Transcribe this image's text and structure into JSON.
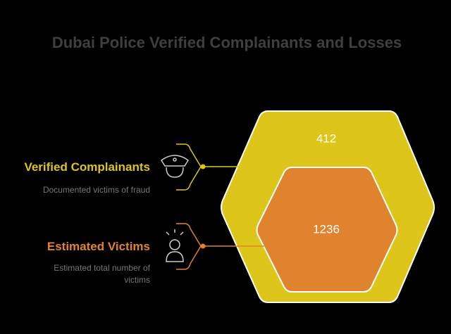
{
  "title": "Dubai Police Verified Complainants and Losses",
  "items": [
    {
      "label": "Verified Complainants",
      "description": "Documented victims of fraud",
      "value": "412"
    },
    {
      "label": "Estimated Victims",
      "description": "Estimated total number of victims",
      "value": "1236"
    }
  ]
}
